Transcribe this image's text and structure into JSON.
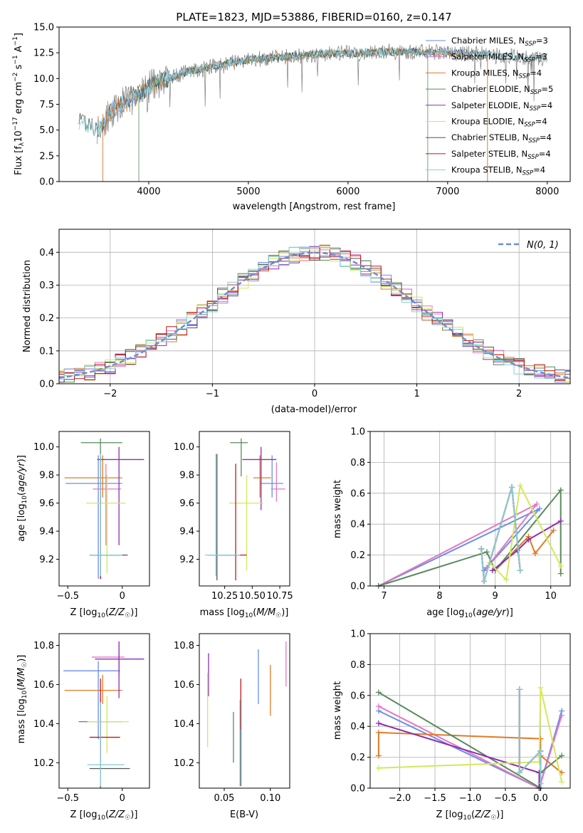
{
  "page_title": "PLATE=1823, MJD=53886, FIBERID=0160, z=0.147",
  "colors": {
    "Chabrier MILES": "#6b8ee8",
    "Salpeter MILES": "#e377c2",
    "Kroupa MILES": "#e07b27",
    "Chabrier ELODIE": "#5a8a5e",
    "Salpeter ELODIE": "#8e2db0",
    "Kroupa ELODIE": "#d4e85a",
    "Chabrier STELIB": "#555555",
    "Salpeter STELIB": "#c0161b",
    "Kroupa STELIB": "#86cfd6",
    "data": "#808080",
    "gauss": "#6b8ed8"
  },
  "legend": [
    {
      "label": "Chabrier MILES, N",
      "sub": "SSP",
      "suffix": "=3"
    },
    {
      "label": "Salpeter MILES, N",
      "sub": "SSP",
      "suffix": "=3"
    },
    {
      "label": "Kroupa MILES, N",
      "sub": "SSP",
      "suffix": "=4"
    },
    {
      "label": "Chabrier ELODIE, N",
      "sub": "SSP",
      "suffix": "=5"
    },
    {
      "label": "Salpeter ELODIE, N",
      "sub": "SSP",
      "suffix": "=4"
    },
    {
      "label": "Kroupa ELODIE, N",
      "sub": "SSP",
      "suffix": "=4"
    },
    {
      "label": "Chabrier STELIB, N",
      "sub": "SSP",
      "suffix": "=4"
    },
    {
      "label": "Salpeter STELIB, N",
      "sub": "SSP",
      "suffix": "=4"
    },
    {
      "label": "Kroupa STELIB, N",
      "sub": "SSP",
      "suffix": "=4"
    }
  ],
  "chart_data": [
    {
      "id": "spectrum",
      "type": "line",
      "title": "PLATE=1823, MJD=53886, FIBERID=0160, z=0.147",
      "xlabel": "wavelength [Angstrom, rest frame]",
      "ylabel": "Flux [fλ10⁻¹⁷ erg cm⁻² s⁻¹ A⁻¹]",
      "xlim": [
        3100,
        8230
      ],
      "ylim": [
        0,
        15
      ],
      "xticks": [
        4000,
        5000,
        6000,
        7000,
        8000
      ],
      "yticks": [
        0.0,
        2.5,
        5.0,
        7.5,
        10.0,
        12.5,
        15.0
      ],
      "continuum": {
        "x": [
          3300,
          3400,
          3500,
          3600,
          3700,
          3800,
          3900,
          4000,
          4200,
          4400,
          4600,
          4800,
          5000,
          5200,
          5500,
          5800,
          6100,
          6400,
          6700,
          7000,
          7300,
          7600,
          7900
        ],
        "y": [
          5.8,
          5.4,
          5.2,
          6.5,
          7.3,
          8.0,
          8.5,
          9.2,
          10.0,
          10.7,
          11.1,
          11.5,
          11.8,
          12.0,
          12.2,
          12.4,
          12.5,
          12.6,
          12.6,
          12.5,
          12.4,
          12.2,
          12.0
        ]
      },
      "grid": false
    },
    {
      "id": "residuals",
      "type": "step",
      "xlabel": "(data-model)/error",
      "ylabel": "Normed distribution",
      "xlim": [
        -2.5,
        2.5
      ],
      "ylim": [
        0,
        0.47
      ],
      "xticks": [
        -2,
        -1,
        0,
        1,
        2
      ],
      "yticks": [
        0.0,
        0.1,
        0.2,
        0.3,
        0.4
      ],
      "bin_width": 0.1,
      "gauss_label": "N(0, 1)",
      "grid": true
    },
    {
      "id": "age-vs-Z",
      "type": "errorbar",
      "xlabel": "Z [log10(Z/Z☉)]",
      "ylabel": "age [log10(age/yr)]",
      "xlim": [
        -0.58,
        0.25
      ],
      "ylim": [
        9.01,
        10.11
      ],
      "xticks": [
        -0.5,
        0.0
      ],
      "yticks": [
        9.2,
        9.4,
        9.6,
        9.8,
        10.0
      ],
      "points": [
        {
          "model": "Chabrier MILES",
          "x": -0.22,
          "xerr": [
            0.3,
            0.22
          ],
          "y": 9.74,
          "yerr": [
            0.68,
            0.2
          ]
        },
        {
          "model": "Salpeter MILES",
          "x": -0.15,
          "xerr": [
            0.12,
            0.14
          ],
          "y": 9.7,
          "yerr": [
            0.4,
            0.18
          ]
        },
        {
          "model": "Kroupa MILES",
          "x": -0.18,
          "xerr": [
            0.35,
            0.18
          ],
          "y": 9.78,
          "yerr": [
            0.14,
            0.16
          ]
        },
        {
          "model": "Chabrier ELODIE",
          "x": -0.2,
          "xerr": [
            0.18,
            0.2
          ],
          "y": 10.03,
          "yerr": [
            0.97,
            0.03
          ]
        },
        {
          "model": "Salpeter ELODIE",
          "x": -0.03,
          "xerr": [
            0.2,
            0.23
          ],
          "y": 9.91,
          "yerr": [
            0.61,
            0.09
          ]
        },
        {
          "model": "Kroupa ELODIE",
          "x": -0.14,
          "xerr": [
            0.19,
            0.17
          ],
          "y": 9.6,
          "yerr": [
            0.5,
            0.2
          ]
        },
        {
          "model": "Chabrier STELIB",
          "x": -0.2,
          "xerr": [
            0.1,
            0.25
          ],
          "y": 9.23,
          "yerr": [
            0.17,
            0.7
          ]
        },
        {
          "model": "Salpeter STELIB",
          "x": -0.2,
          "xerr": [
            0.1,
            0.18
          ],
          "y": 9.23,
          "yerr": [
            0.17,
            0.68
          ]
        },
        {
          "model": "Kroupa STELIB",
          "x": -0.2,
          "xerr": [
            0.1,
            0.2
          ],
          "y": 9.23,
          "yerr": [
            0.15,
            0.72
          ]
        }
      ]
    },
    {
      "id": "age-vs-mass",
      "type": "errorbar",
      "xlabel": "mass [log10(M/M☉)]",
      "ylabel": "",
      "xlim": [
        10.02,
        10.84
      ],
      "ylim": [
        9.01,
        10.11
      ],
      "xticks": [
        10.25,
        10.5,
        10.75
      ],
      "xticklabels": [
        "10.25",
        "10.50",
        "10.75"
      ],
      "yticks": [
        9.2,
        9.4,
        9.6,
        9.8,
        10.0
      ],
      "points": [
        {
          "model": "Chabrier MILES",
          "x": 10.68,
          "xerr": [
            0.1,
            0.1
          ],
          "y": 9.74,
          "yerr": [
            0.1,
            0.2
          ]
        },
        {
          "model": "Salpeter MILES",
          "x": 10.72,
          "xerr": [
            0.05,
            0.08
          ],
          "y": 9.7,
          "yerr": [
            0.09,
            0.19
          ]
        },
        {
          "model": "Kroupa MILES",
          "x": 10.57,
          "xerr": [
            0.06,
            0.1
          ],
          "y": 9.78,
          "yerr": [
            0.14,
            0.16
          ]
        },
        {
          "model": "Chabrier ELODIE",
          "x": 10.4,
          "xerr": [
            0.1,
            0.06
          ],
          "y": 10.03,
          "yerr": [
            0.24,
            0.03
          ]
        },
        {
          "model": "Salpeter ELODIE",
          "x": 10.58,
          "xerr": [
            0.17,
            0.14
          ],
          "y": 9.91,
          "yerr": [
            0.36,
            0.09
          ]
        },
        {
          "model": "Kroupa ELODIE",
          "x": 10.45,
          "xerr": [
            0.16,
            0.15
          ],
          "y": 9.6,
          "yerr": [
            0.48,
            0.2
          ]
        },
        {
          "model": "Chabrier STELIB",
          "x": 10.18,
          "xerr": [
            0.08,
            0.18
          ],
          "y": 9.23,
          "yerr": [
            0.18,
            0.72
          ]
        },
        {
          "model": "Salpeter STELIB",
          "x": 10.35,
          "xerr": [
            0.18,
            0.1
          ],
          "y": 9.23,
          "yerr": [
            0.18,
            0.65
          ]
        },
        {
          "model": "Kroupa STELIB",
          "x": 10.17,
          "xerr": [
            0.1,
            0.22
          ],
          "y": 9.23,
          "yerr": [
            0.15,
            0.72
          ]
        }
      ]
    },
    {
      "id": "mass-weight-vs-age",
      "type": "line",
      "xlabel": "age [log10(age/yr)]",
      "ylabel": "mass weight",
      "xlim": [
        6.75,
        10.35
      ],
      "ylim": [
        0,
        1
      ],
      "xticks": [
        7,
        8,
        9,
        10
      ],
      "yticks": [
        0.0,
        0.2,
        0.4,
        0.6,
        0.8,
        1.0
      ],
      "grid": true,
      "series": [
        {
          "model": "Chabrier MILES",
          "x": [
            6.9,
            9.8,
            8.8
          ],
          "y": [
            0.0,
            0.5,
            0.1
          ]
        },
        {
          "model": "Salpeter MILES",
          "x": [
            6.9,
            9.75,
            8.85
          ],
          "y": [
            0.0,
            0.53,
            0.12
          ]
        },
        {
          "model": "Kroupa MILES",
          "x": [
            9.0,
            9.6,
            9.72,
            10.05
          ],
          "y": [
            0.1,
            0.32,
            0.21,
            0.36
          ]
        },
        {
          "model": "Chabrier ELODIE",
          "x": [
            6.9,
            8.85,
            9.0,
            10.18,
            10.18
          ],
          "y": [
            0.0,
            0.22,
            0.1,
            0.62,
            0.08
          ]
        },
        {
          "model": "Salpeter ELODIE",
          "x": [
            8.95,
            9.4,
            9.6,
            10.18
          ],
          "y": [
            0.1,
            0.23,
            0.3,
            0.42
          ]
        },
        {
          "model": "Kroupa ELODIE",
          "x": [
            8.9,
            9.2,
            9.45,
            10.18
          ],
          "y": [
            0.15,
            0.04,
            0.65,
            0.13
          ]
        },
        {
          "model": "Chabrier STELIB",
          "x": [
            8.75,
            8.8,
            9.3,
            9.45
          ],
          "y": [
            0.24,
            0.03,
            0.64,
            0.1
          ]
        },
        {
          "model": "Salpeter STELIB",
          "x": [
            8.75,
            8.8,
            9.3,
            9.45
          ],
          "y": [
            0.24,
            0.03,
            0.64,
            0.1
          ]
        },
        {
          "model": "Kroupa STELIB",
          "x": [
            8.75,
            8.8,
            9.3,
            9.45
          ],
          "y": [
            0.24,
            0.03,
            0.64,
            0.1
          ]
        }
      ]
    },
    {
      "id": "mass-vs-Z",
      "type": "errorbar",
      "xlabel": "Z [log10(Z/Z☉)]",
      "ylabel": "mass [log10(M/M☉)]",
      "xlim": [
        -0.58,
        0.25
      ],
      "ylim": [
        10.07,
        10.86
      ],
      "xticks": [
        -0.5,
        0.0
      ],
      "yticks": [
        10.2,
        10.4,
        10.6,
        10.8
      ],
      "points": [
        {
          "model": "Chabrier MILES",
          "x": -0.22,
          "xerr": [
            0.32,
            0.2
          ],
          "y": 10.67,
          "yerr": [
            0.35,
            0.05
          ]
        },
        {
          "model": "Salpeter MILES",
          "x": -0.03,
          "xerr": [
            0.25,
            0.05
          ],
          "y": 10.74,
          "yerr": [
            0.1,
            0.08
          ]
        },
        {
          "model": "Kroupa MILES",
          "x": -0.18,
          "xerr": [
            0.35,
            0.18
          ],
          "y": 10.57,
          "yerr": [
            0.07,
            0.08
          ]
        },
        {
          "model": "Chabrier ELODIE",
          "x": -0.2,
          "xerr": [
            0.2,
            0.2
          ],
          "y": 10.41,
          "yerr": [
            0.22,
            0.06
          ]
        },
        {
          "model": "Salpeter ELODIE",
          "x": -0.03,
          "xerr": [
            0.22,
            0.23
          ],
          "y": 10.73,
          "yerr": [
            0.2,
            0.09
          ]
        },
        {
          "model": "Kroupa ELODIE",
          "x": -0.14,
          "xerr": [
            0.18,
            0.2
          ],
          "y": 10.41,
          "yerr": [
            0.16,
            0.13
          ]
        },
        {
          "model": "Chabrier STELIB",
          "x": -0.2,
          "xerr": [
            0.1,
            0.27
          ],
          "y": 10.17,
          "yerr": [
            0.1,
            0.35
          ]
        },
        {
          "model": "Salpeter STELIB",
          "x": -0.2,
          "xerr": [
            0.1,
            0.18
          ],
          "y": 10.33,
          "yerr": [
            0.12,
            0.3
          ]
        },
        {
          "model": "Kroupa STELIB",
          "x": -0.2,
          "xerr": [
            0.12,
            0.22
          ],
          "y": 10.19,
          "yerr": [
            0.11,
            0.32
          ]
        }
      ]
    },
    {
      "id": "mass-vs-EBV",
      "type": "errorbar",
      "xlabel": "E(B-V)",
      "ylabel": "",
      "xlim": [
        0.023,
        0.121
      ],
      "ylim": [
        10.07,
        10.86
      ],
      "xticks": [
        0.05,
        0.1
      ],
      "xticklabels": [
        "0.05",
        "0.10"
      ],
      "yticks": [
        10.2,
        10.4,
        10.6,
        10.8
      ],
      "points": [
        {
          "model": "Chabrier MILES",
          "x": 0.087,
          "y": 10.64,
          "yerr": [
            0.14,
            0.14
          ]
        },
        {
          "model": "Salpeter MILES",
          "x": 0.117,
          "y": 10.7,
          "yerr": [
            0.11,
            0.12
          ]
        },
        {
          "model": "Kroupa MILES",
          "x": 0.1,
          "y": 10.57,
          "yerr": [
            0.13,
            0.13
          ]
        },
        {
          "model": "Chabrier ELODIE",
          "x": 0.06,
          "y": 10.33,
          "yerr": [
            0.13,
            0.13
          ]
        },
        {
          "model": "Salpeter ELODIE",
          "x": 0.033,
          "y": 10.65,
          "yerr": [
            0.11,
            0.11
          ]
        },
        {
          "model": "Kroupa ELODIE",
          "x": 0.032,
          "y": 10.47,
          "yerr": [
            0.19,
            0.19
          ]
        },
        {
          "model": "Chabrier STELIB",
          "x": 0.068,
          "y": 10.3,
          "yerr": [
            0.22,
            0.22
          ]
        },
        {
          "model": "Salpeter STELIB",
          "x": 0.068,
          "y": 10.5,
          "yerr": [
            0.13,
            0.13
          ]
        },
        {
          "model": "Kroupa STELIB",
          "x": 0.067,
          "y": 10.3,
          "yerr": [
            0.22,
            0.22
          ]
        }
      ]
    },
    {
      "id": "mass-weight-vs-Z",
      "type": "line",
      "xlabel": "Z [log10(Z/Z☉)]",
      "ylabel": "mass weight",
      "xlim": [
        -2.42,
        0.42
      ],
      "ylim": [
        0,
        1
      ],
      "xticks": [
        -2.0,
        -1.5,
        -1.0,
        -0.5,
        0.0
      ],
      "yticks": [
        0.0,
        0.2,
        0.4,
        0.6,
        0.8,
        1.0
      ],
      "grid": true,
      "series": [
        {
          "model": "Chabrier MILES",
          "x": [
            -2.3,
            -0.02,
            0.3
          ],
          "y": [
            0.5,
            0.0,
            0.5
          ]
        },
        {
          "model": "Salpeter MILES",
          "x": [
            -2.3,
            -0.02,
            0.3
          ],
          "y": [
            0.53,
            0.0,
            0.47
          ]
        },
        {
          "model": "Kroupa MILES",
          "x": [
            -2.3,
            -2.3,
            0.0,
            0.0,
            0.3
          ],
          "y": [
            0.21,
            0.36,
            0.32,
            0.21,
            0.1
          ]
        },
        {
          "model": "Chabrier ELODIE",
          "x": [
            -2.3,
            0.0,
            0.0,
            0.3
          ],
          "y": [
            0.62,
            0.0,
            0.1,
            0.21
          ]
        },
        {
          "model": "Salpeter ELODIE",
          "x": [
            -2.3,
            -0.02,
            -0.02
          ],
          "y": [
            0.42,
            0.1,
            0.0
          ]
        },
        {
          "model": "Kroupa ELODIE",
          "x": [
            -2.3,
            -0.02,
            0.0,
            0.3
          ],
          "y": [
            0.13,
            0.17,
            0.65,
            0.04
          ]
        },
        {
          "model": "Chabrier STELIB",
          "x": [
            -0.3,
            -0.3,
            0.0,
            0.0
          ],
          "y": [
            0.64,
            0.1,
            0.24,
            0.03
          ]
        },
        {
          "model": "Salpeter STELIB",
          "x": [
            -0.3,
            -0.3,
            0.0,
            0.0
          ],
          "y": [
            0.64,
            0.1,
            0.24,
            0.03
          ]
        },
        {
          "model": "Kroupa STELIB",
          "x": [
            -0.3,
            -0.3,
            0.0,
            0.0
          ],
          "y": [
            0.64,
            0.1,
            0.24,
            0.03
          ]
        }
      ]
    }
  ]
}
